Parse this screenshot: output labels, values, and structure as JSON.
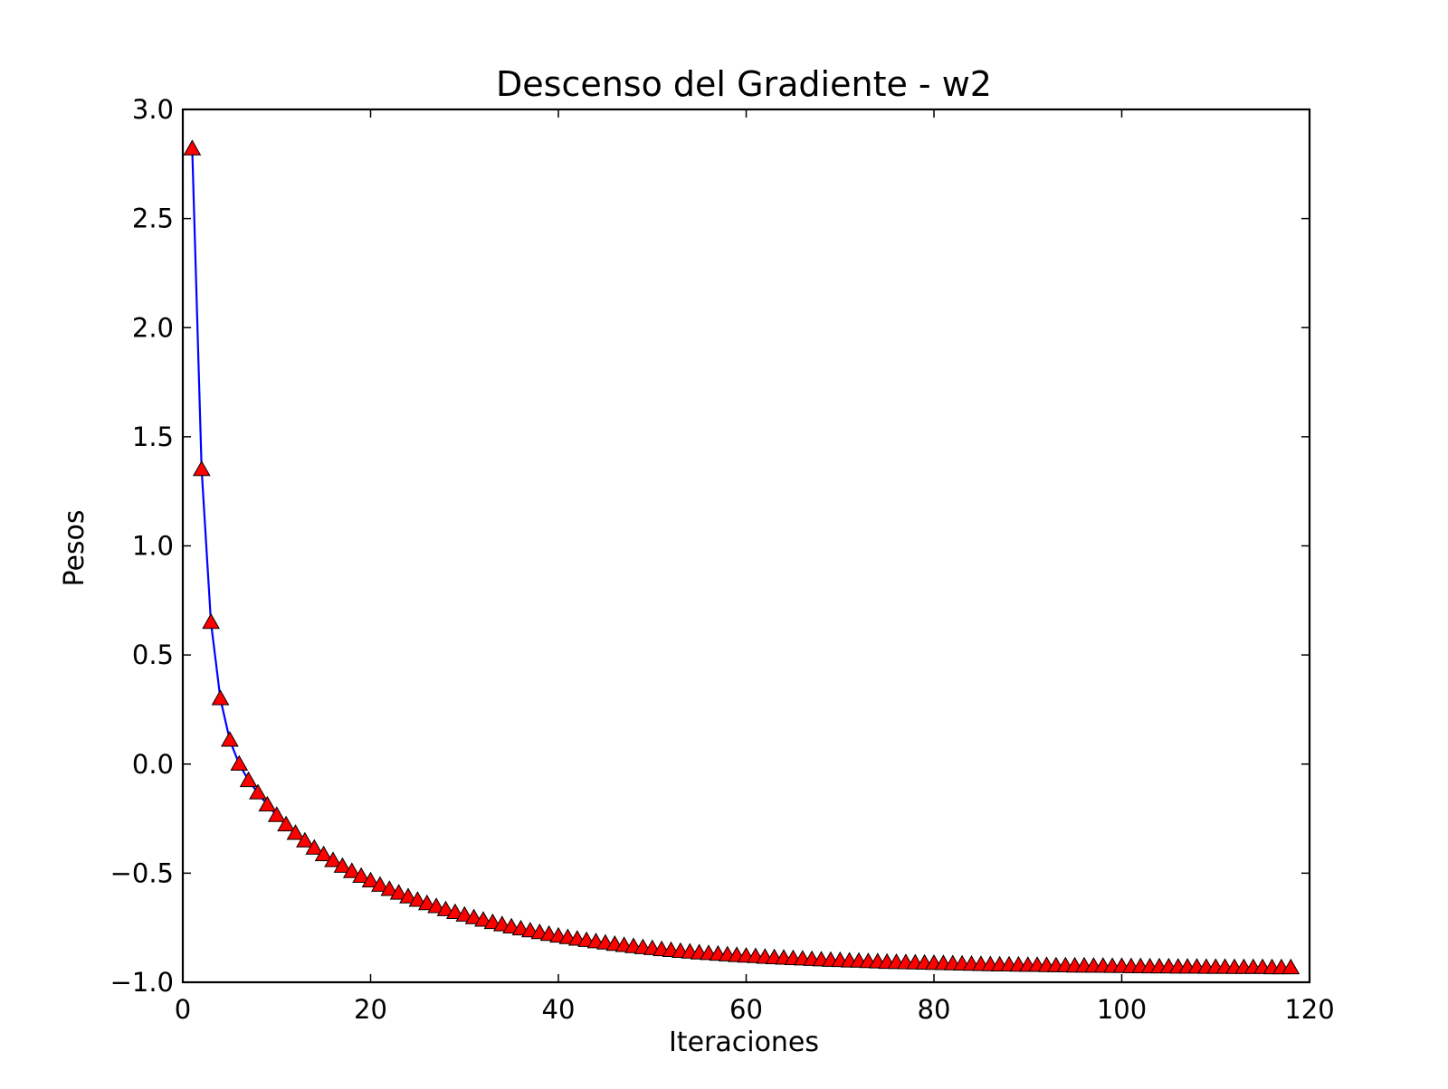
{
  "chart_data": {
    "type": "line",
    "title": "Descenso del Gradiente - w2",
    "xlabel": "Iteraciones",
    "ylabel": "Pesos",
    "xlim": [
      0,
      120
    ],
    "ylim": [
      -1.0,
      3.0
    ],
    "grid": false,
    "xticks": [
      0,
      20,
      40,
      60,
      80,
      100,
      120
    ],
    "xtick_labels": [
      "0",
      "20",
      "40",
      "60",
      "80",
      "100",
      "120"
    ],
    "yticks": [
      -1.0,
      -0.5,
      0.0,
      0.5,
      1.0,
      1.5,
      2.0,
      2.5,
      3.0
    ],
    "ytick_labels": [
      "−1.0",
      "−0.5",
      "0.0",
      "0.5",
      "1.0",
      "1.5",
      "2.0",
      "2.5",
      "3.0"
    ],
    "series": [
      {
        "line_color": "#0000ff",
        "marker": "triangle-up",
        "marker_color": "#ff0000",
        "marker_edge_color": "#000000",
        "x": [
          1,
          2,
          3,
          4,
          5,
          6,
          7,
          8,
          9,
          10,
          11,
          12,
          13,
          14,
          15,
          16,
          17,
          18,
          19,
          20,
          21,
          22,
          23,
          24,
          25,
          26,
          27,
          28,
          29,
          30,
          31,
          32,
          33,
          34,
          35,
          36,
          37,
          38,
          39,
          40,
          41,
          42,
          43,
          44,
          45,
          46,
          47,
          48,
          49,
          50,
          51,
          52,
          53,
          54,
          55,
          56,
          57,
          58,
          59,
          60,
          61,
          62,
          63,
          64,
          65,
          66,
          67,
          68,
          69,
          70,
          71,
          72,
          73,
          74,
          75,
          76,
          77,
          78,
          79,
          80,
          81,
          82,
          83,
          84,
          85,
          86,
          87,
          88,
          89,
          90,
          91,
          92,
          93,
          94,
          95,
          96,
          97,
          98,
          99,
          100,
          101,
          102,
          103,
          104,
          105,
          106,
          107,
          108,
          109,
          110,
          111,
          112,
          113,
          114,
          115,
          116,
          117,
          118
        ],
        "y": [
          2.82,
          1.35,
          0.65,
          0.3,
          0.11,
          -0.0,
          -0.075,
          -0.132,
          -0.187,
          -0.235,
          -0.278,
          -0.317,
          -0.352,
          -0.385,
          -0.415,
          -0.442,
          -0.468,
          -0.492,
          -0.514,
          -0.535,
          -0.555,
          -0.574,
          -0.591,
          -0.608,
          -0.624,
          -0.639,
          -0.653,
          -0.667,
          -0.68,
          -0.692,
          -0.704,
          -0.715,
          -0.726,
          -0.736,
          -0.746,
          -0.755,
          -0.764,
          -0.772,
          -0.78,
          -0.788,
          -0.795,
          -0.802,
          -0.808,
          -0.814,
          -0.82,
          -0.826,
          -0.831,
          -0.836,
          -0.841,
          -0.845,
          -0.85,
          -0.854,
          -0.858,
          -0.861,
          -0.865,
          -0.868,
          -0.871,
          -0.874,
          -0.877,
          -0.88,
          -0.882,
          -0.885,
          -0.887,
          -0.889,
          -0.891,
          -0.893,
          -0.895,
          -0.897,
          -0.899,
          -0.9,
          -0.902,
          -0.903,
          -0.905,
          -0.906,
          -0.908,
          -0.909,
          -0.91,
          -0.911,
          -0.912,
          -0.913,
          -0.914,
          -0.915,
          -0.916,
          -0.917,
          -0.918,
          -0.919,
          -0.92,
          -0.92,
          -0.921,
          -0.922,
          -0.922,
          -0.923,
          -0.924,
          -0.924,
          -0.925,
          -0.925,
          -0.926,
          -0.926,
          -0.927,
          -0.927,
          -0.928,
          -0.928,
          -0.929,
          -0.929,
          -0.929,
          -0.93,
          -0.93,
          -0.93,
          -0.931,
          -0.931,
          -0.931,
          -0.932,
          -0.932,
          -0.932,
          -0.932,
          -0.933,
          -0.933,
          -0.933
        ]
      }
    ]
  }
}
